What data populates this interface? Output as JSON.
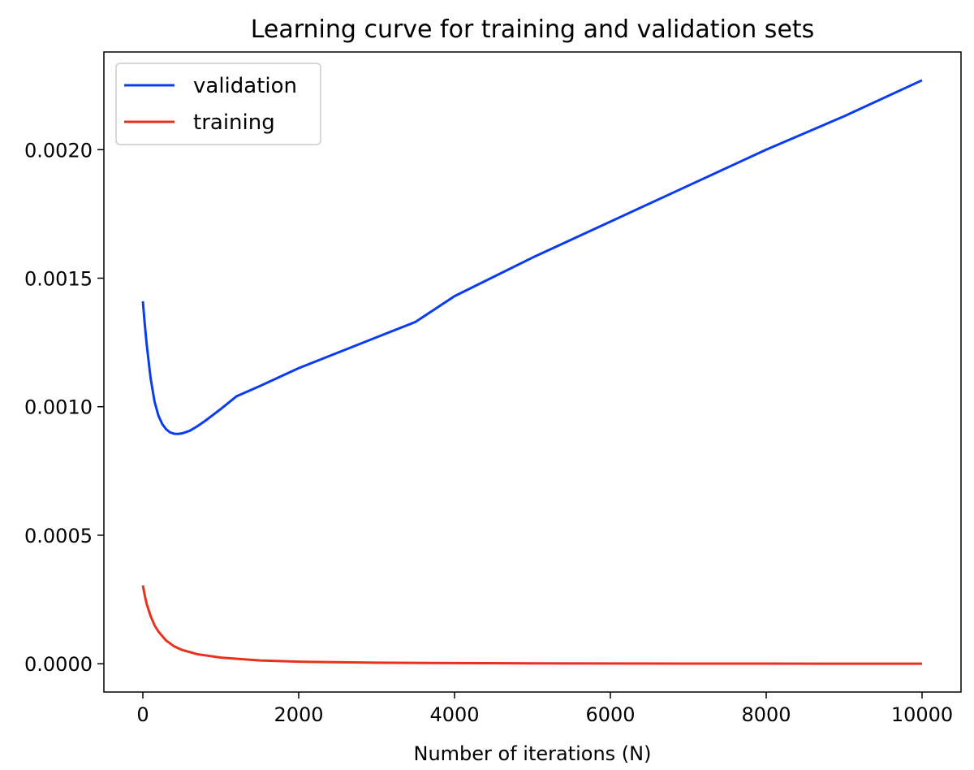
{
  "chart_data": {
    "type": "line",
    "title": "Learning curve for training and validation sets",
    "xlabel": "Number of iterations (N)",
    "ylabel": "",
    "xlim": [
      -500,
      10500
    ],
    "ylim": [
      -0.00011,
      0.00238
    ],
    "x_ticks": [
      0,
      2000,
      4000,
      6000,
      8000,
      10000
    ],
    "x_tick_labels": [
      "0",
      "2000",
      "4000",
      "6000",
      "8000",
      "10000"
    ],
    "y_ticks": [
      0.0,
      0.0005,
      0.001,
      0.0015,
      0.002
    ],
    "y_tick_labels": [
      "0.0000",
      "0.0005",
      "0.0010",
      "0.0015",
      "0.0020"
    ],
    "grid": false,
    "legend_position": "top-left",
    "series": [
      {
        "name": "validation",
        "color": "#0a3cf0",
        "x": [
          0,
          25,
          50,
          100,
          150,
          200,
          250,
          300,
          350,
          400,
          450,
          500,
          600,
          700,
          800,
          1000,
          1200,
          1500,
          2000,
          2500,
          3000,
          3500,
          4000,
          5000,
          6000,
          7000,
          8000,
          9000,
          10000
        ],
        "y": [
          0.00141,
          0.00132,
          0.00124,
          0.00111,
          0.00102,
          0.000965,
          0.000932,
          0.000912,
          0.0009,
          0.000895,
          0.000894,
          0.000896,
          0.000906,
          0.000924,
          0.000945,
          0.000991,
          0.00104,
          0.00108,
          0.00115,
          0.00121,
          0.00127,
          0.00133,
          0.00143,
          0.00158,
          0.00172,
          0.00186,
          0.002,
          0.00213,
          0.00227
        ]
      },
      {
        "name": "training",
        "color": "#e8321e",
        "x": [
          0,
          25,
          50,
          100,
          150,
          200,
          300,
          400,
          500,
          700,
          1000,
          1500,
          2000,
          3000,
          4000,
          5000,
          6000,
          7000,
          8000,
          9000,
          10000
        ],
        "y": [
          0.000305,
          0.000265,
          0.000232,
          0.000185,
          0.00015,
          0.000125,
          9e-05,
          6.8e-05,
          5.4e-05,
          3.7e-05,
          2.4e-05,
          1.3e-05,
          8e-06,
          4e-06,
          2.5e-06,
          1.5e-06,
          1e-06,
          7e-07,
          5e-07,
          3e-07,
          2e-07
        ]
      }
    ]
  }
}
